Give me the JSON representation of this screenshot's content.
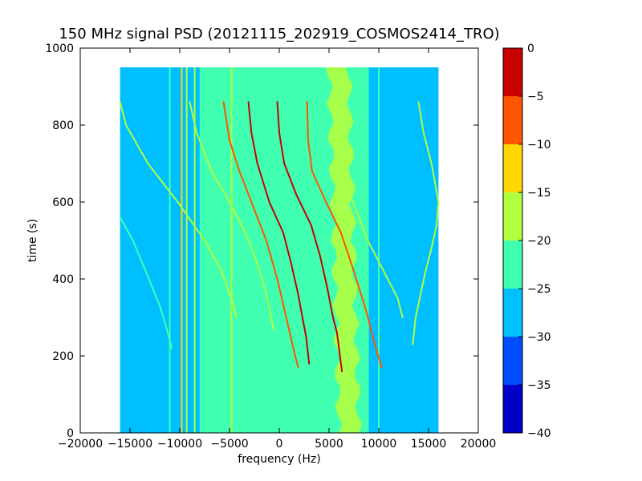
{
  "chart_data": {
    "type": "heatmap",
    "title": "150 MHz signal PSD (20121115_202919_COSMOS2414_TRO)",
    "xlabel": "frequency (Hz)",
    "ylabel": "time (s)",
    "xlim": [
      -20000,
      20000
    ],
    "ylim": [
      0,
      1000
    ],
    "x_ticks": [
      "−20000",
      "−15000",
      "−10000",
      "−5000",
      "0",
      "5000",
      "10000",
      "15000",
      "20000"
    ],
    "y_ticks": [
      "0",
      "200",
      "400",
      "600",
      "800",
      "1000"
    ],
    "data_extent": {
      "x": [
        -16000,
        16000
      ],
      "y": [
        0,
        950
      ]
    },
    "background_level": -27.5,
    "noise_band_level": -22.5,
    "noise_band": {
      "x": [
        -8000,
        9000
      ]
    },
    "strong_band": {
      "center_x": [
        7000,
        6000
      ],
      "halfwidth": 1000,
      "level": -17.5
    },
    "vertical_lines": [
      {
        "x": -11000,
        "level": -22.5
      },
      {
        "x": -9800,
        "level": -12.5
      },
      {
        "x": -9300,
        "level": -17.5
      },
      {
        "x": -8500,
        "level": -17.5
      },
      {
        "x": -4800,
        "level": -17.5
      },
      {
        "x": 10000,
        "level": -22.5
      }
    ],
    "traces": [
      {
        "t": [
          860,
          800,
          700,
          600,
          500,
          420,
          340,
          300
        ],
        "x": [
          -16000,
          -15400,
          -13200,
          -10200,
          -7500,
          -5800,
          -4700,
          -4300
        ],
        "level": -17.5
      },
      {
        "t": [
          560,
          500,
          400,
          330,
          270,
          220
        ],
        "x": [
          -16000,
          -14700,
          -13100,
          -12000,
          -11300,
          -10800
        ],
        "level": -22.5
      },
      {
        "t": [
          860,
          780,
          680,
          600,
          520,
          440,
          360,
          300,
          270
        ],
        "x": [
          -9000,
          -8300,
          -6800,
          -5000,
          -3400,
          -2200,
          -1300,
          -800,
          -600
        ],
        "level": -17.5
      },
      {
        "t": [
          860,
          760,
          680,
          600,
          500,
          400,
          300,
          200,
          170
        ],
        "x": [
          -5600,
          -5000,
          -4000,
          -2800,
          -1300,
          -200,
          700,
          1600,
          1900
        ],
        "level": -7.5
      },
      {
        "t": [
          860,
          780,
          700,
          600,
          520,
          440,
          360,
          290,
          250,
          180
        ],
        "x": [
          -3100,
          -2800,
          -2200,
          -1000,
          400,
          1200,
          1900,
          2400,
          2700,
          3000
        ],
        "level": -2.5
      },
      {
        "t": [
          860,
          780,
          700,
          620,
          540,
          460,
          380,
          300,
          260,
          160
        ],
        "x": [
          -200,
          0,
          500,
          1700,
          3200,
          4100,
          4800,
          5400,
          5800,
          6300
        ],
        "level": -2.5
      },
      {
        "t": [
          860,
          760,
          680,
          600,
          520,
          420,
          320,
          220,
          170
        ],
        "x": [
          2800,
          2900,
          3300,
          4700,
          6200,
          7500,
          8700,
          9700,
          10300
        ],
        "level": -7.5
      },
      {
        "t": [
          860,
          760,
          680,
          600,
          500,
          420,
          350,
          300
        ],
        "x": [
          5600,
          5800,
          6300,
          7400,
          8900,
          10500,
          11900,
          12400
        ],
        "level": -17.5
      },
      {
        "t": [
          860,
          780,
          700,
          600,
          540,
          480,
          420,
          360,
          300,
          250,
          230
        ],
        "x": [
          14000,
          14500,
          15300,
          16000,
          15800,
          15300,
          14700,
          14200,
          13700,
          13500,
          13400
        ],
        "level": -17.5
      }
    ],
    "colorbar": {
      "min": -40,
      "max": 0,
      "ticks": [
        "0",
        "−5",
        "−10",
        "−15",
        "−20",
        "−25",
        "−30",
        "−35",
        "−40"
      ],
      "levels": [
        {
          "from": -40,
          "to": -35,
          "color": "#0000c8"
        },
        {
          "from": -35,
          "to": -30,
          "color": "#004cff"
        },
        {
          "from": -30,
          "to": -25,
          "color": "#00bfff"
        },
        {
          "from": -25,
          "to": -20,
          "color": "#40ffb0"
        },
        {
          "from": -20,
          "to": -15,
          "color": "#b0ff40"
        },
        {
          "from": -15,
          "to": -10,
          "color": "#ffd700"
        },
        {
          "from": -10,
          "to": -5,
          "color": "#ff5500"
        },
        {
          "from": -5,
          "to": 0,
          "color": "#c80000"
        }
      ]
    }
  }
}
